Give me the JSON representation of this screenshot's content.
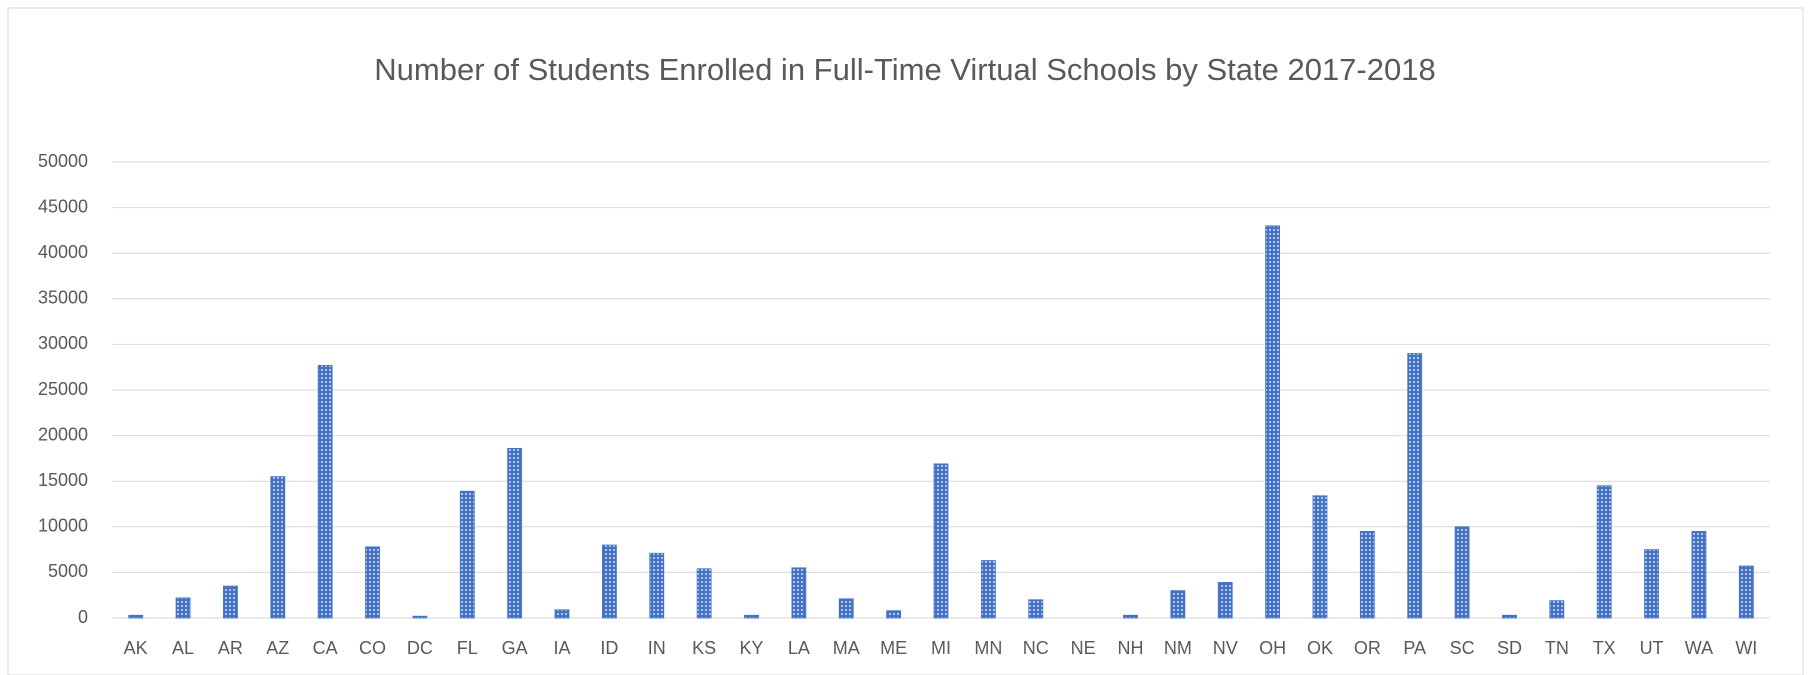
{
  "chart_data": {
    "type": "bar",
    "title": "Number of Students Enrolled in Full-Time Virtual Schools by State 2017-2018",
    "categories": [
      "AK",
      "AL",
      "AR",
      "AZ",
      "CA",
      "CO",
      "DC",
      "FL",
      "GA",
      "IA",
      "ID",
      "IN",
      "KS",
      "KY",
      "LA",
      "MA",
      "ME",
      "MI",
      "MN",
      "NC",
      "NE",
      "NH",
      "NM",
      "NV",
      "OH",
      "OK",
      "OR",
      "PA",
      "SC",
      "SD",
      "TN",
      "TX",
      "UT",
      "WA",
      "WI"
    ],
    "values": [
      300,
      2200,
      3500,
      15500,
      27700,
      7800,
      200,
      13900,
      18600,
      900,
      8000,
      7100,
      5400,
      300,
      5500,
      2100,
      800,
      16900,
      6300,
      2000,
      0,
      300,
      3000,
      3900,
      43000,
      13400,
      9500,
      29000,
      10000,
      300,
      1900,
      14500,
      7500,
      9500,
      5700
    ],
    "color": "#4472c4",
    "ylim": [
      0,
      50000
    ],
    "yticks": [
      0,
      5000,
      10000,
      15000,
      20000,
      25000,
      30000,
      35000,
      40000,
      45000,
      50000
    ],
    "grid": true
  }
}
